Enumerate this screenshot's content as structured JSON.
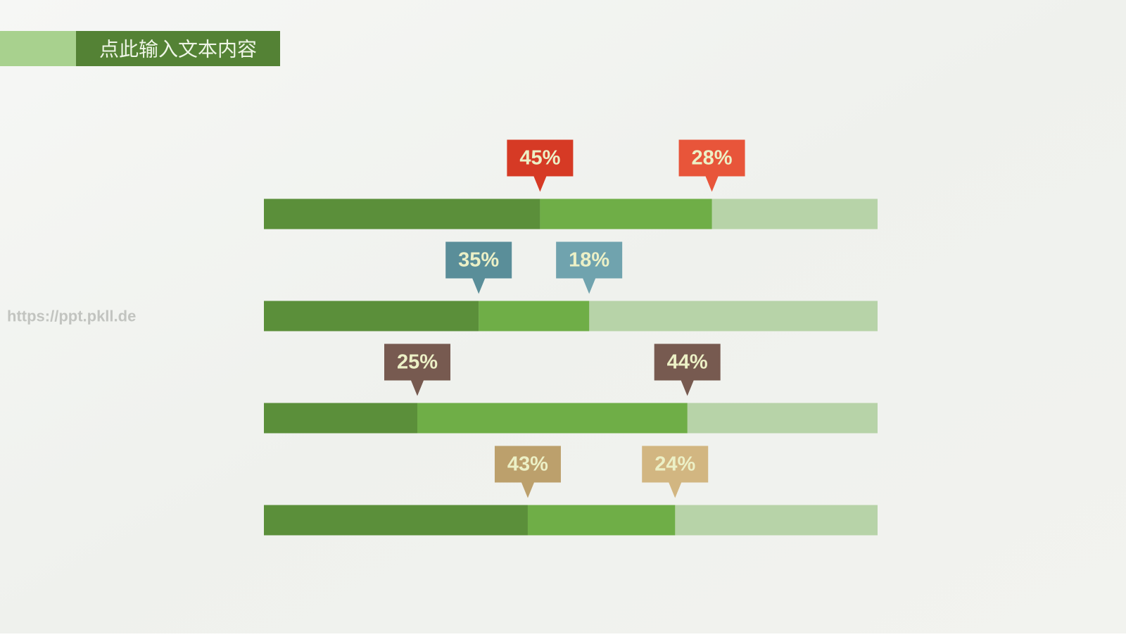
{
  "header": {
    "title": "点此输入文本内容"
  },
  "watermark": "https://ppt.pkll.de",
  "chart_data": {
    "type": "stacked-bar",
    "categories": [
      null,
      null,
      null,
      null
    ],
    "series": [
      {
        "color": "#5b8f3a",
        "values": [
          45,
          35,
          25,
          43
        ],
        "value_labels": [
          "45%",
          "35%",
          "25%",
          "43%"
        ],
        "label_colors": [
          "#d63a25",
          "#5a8e99",
          "#775a50",
          "#bca06c"
        ]
      },
      {
        "color": "#6fae47",
        "values": [
          28,
          18,
          44,
          24
        ],
        "value_labels": [
          "28%",
          "18%",
          "44%",
          "24%"
        ],
        "label_colors": [
          "#e8553a",
          "#70a3ae",
          "#775a50",
          "#d2b681"
        ]
      }
    ]
  }
}
